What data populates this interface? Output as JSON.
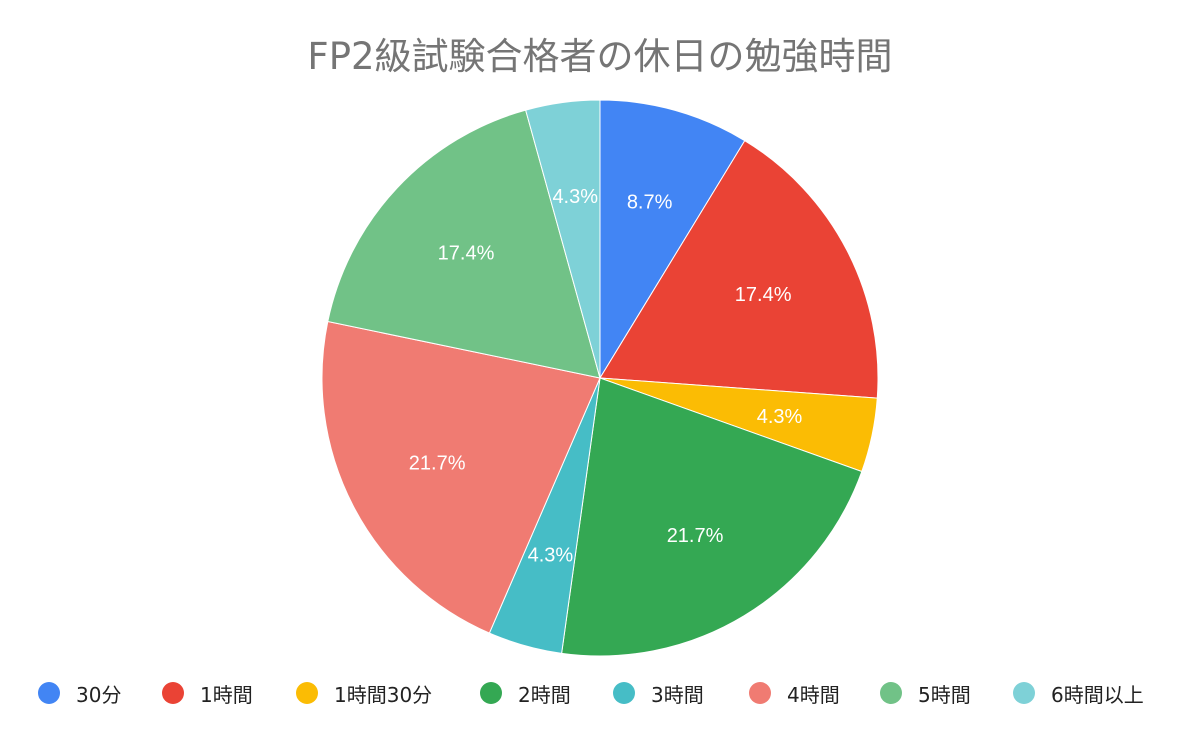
{
  "chart_data": {
    "type": "pie",
    "title": "FP2級試験合格者の休日の勉強時間",
    "categories": [
      "30分",
      "1時間",
      "1時間30分",
      "2時間",
      "3時間",
      "4時間",
      "5時間",
      "6時間以上"
    ],
    "values": [
      8.7,
      17.4,
      4.3,
      21.7,
      4.3,
      21.7,
      17.4,
      4.3
    ],
    "labels": [
      "8.7%",
      "17.4%",
      "4.3%",
      "21.7%",
      "4.3%",
      "21.7%",
      "17.4%",
      "4.3%"
    ],
    "colors": [
      "#4285F4",
      "#EA4335",
      "#FBBC04",
      "#34A853",
      "#46BDC6",
      "#F07B72",
      "#71C287",
      "#7ED1D7"
    ],
    "legend_position": "bottom",
    "start_angle": "12 o'clock",
    "direction": "clockwise"
  }
}
